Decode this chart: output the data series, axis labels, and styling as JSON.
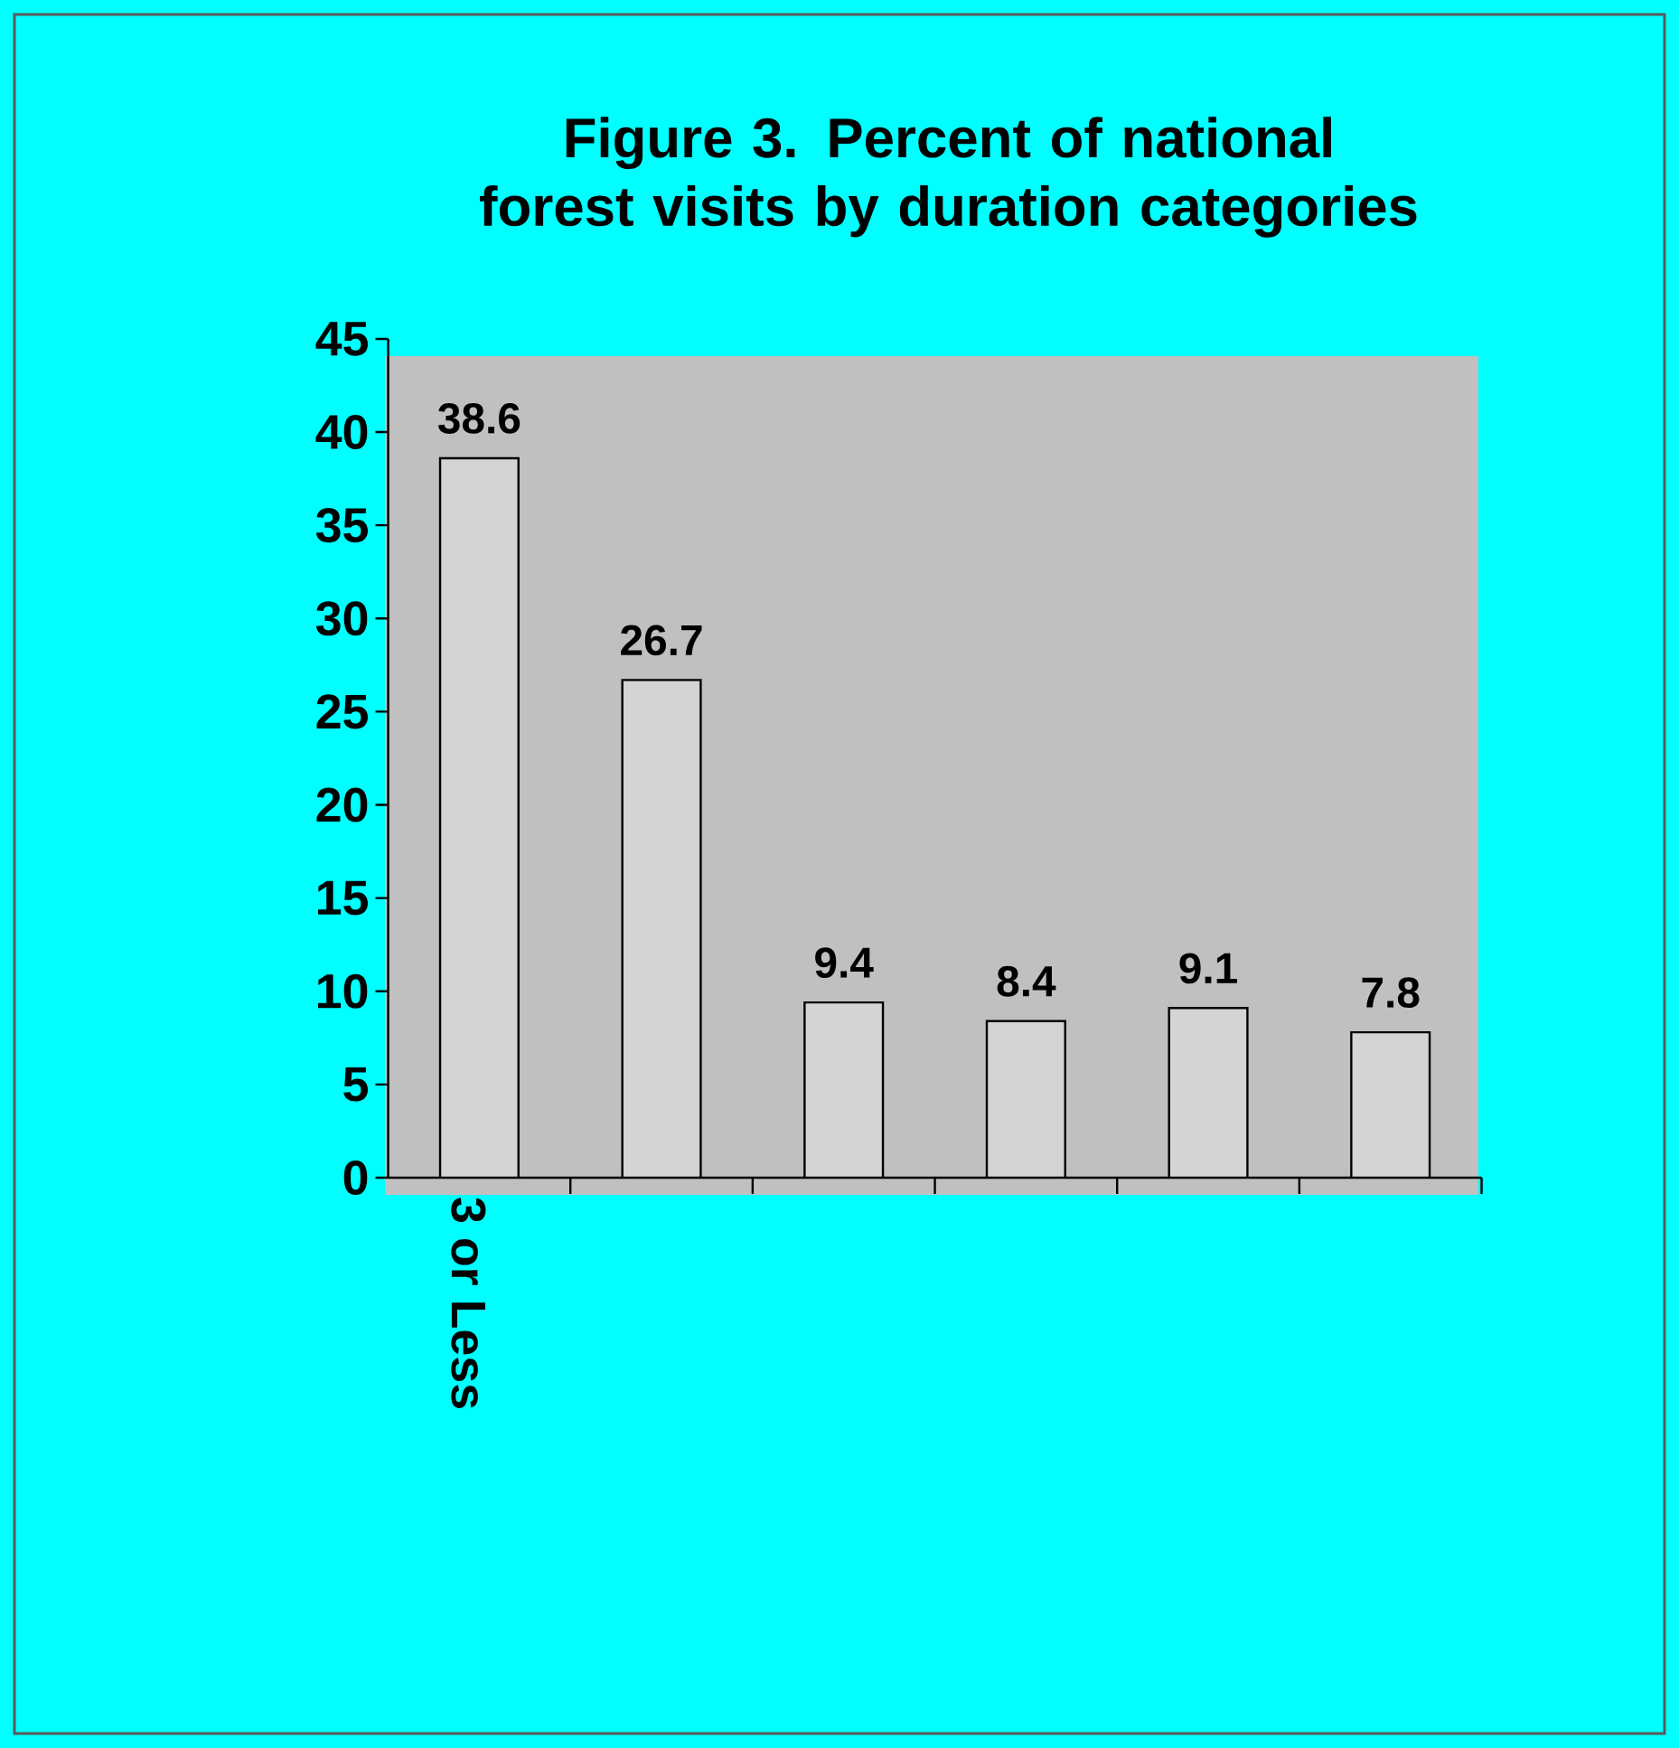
{
  "chart_data": {
    "type": "bar",
    "title": "Figure 3. Percent of national forest visits by duration categories",
    "categories": [
      "3 or Less",
      null,
      null,
      null,
      null,
      null
    ],
    "values": [
      38.6,
      26.7,
      9.4,
      8.4,
      9.1,
      7.8
    ],
    "color": "#d4d4d4",
    "ylim": [
      0,
      45
    ],
    "yticks": [
      0,
      5,
      10,
      15,
      20,
      25,
      30,
      35,
      40,
      45
    ],
    "data_labels": true,
    "grid": false
  }
}
